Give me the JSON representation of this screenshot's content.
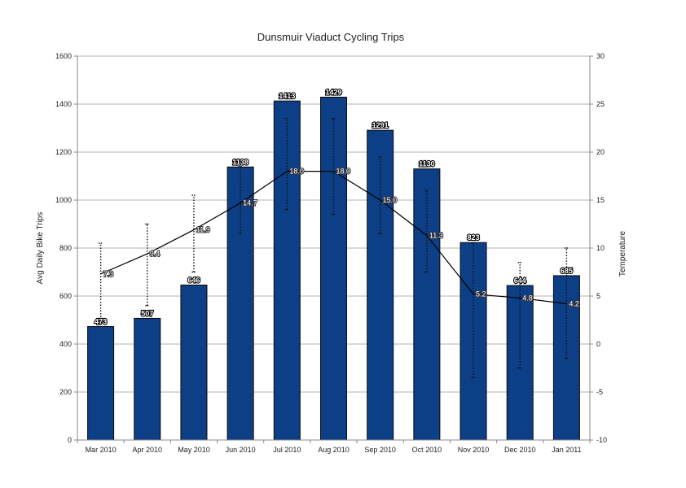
{
  "chart_data": {
    "type": "bar",
    "title": "Dunsmuir Viaduct Cycling Trips",
    "ylabel": "Avg Daily Bike Trips",
    "y2label": "Temperature",
    "categories": [
      "Mar 2010",
      "Apr 2010",
      "May 2010",
      "Jun 2010",
      "Jul 2010",
      "Aug 2010",
      "Sep 2010",
      "Oct 2010",
      "Nov 2010",
      "Dec 2010",
      "Jan 2011"
    ],
    "ylim": [
      0,
      1600
    ],
    "yticks": [
      0,
      200,
      400,
      600,
      800,
      1000,
      1200,
      1400,
      1600
    ],
    "y2lim": [
      -10,
      30
    ],
    "y2ticks": [
      -10,
      -5,
      0,
      5,
      10,
      15,
      20,
      25,
      30
    ],
    "grid": true,
    "series": [
      {
        "type": "bar",
        "axis": "left",
        "color": "#0d3f87",
        "values": [
          473,
          507,
          646,
          1138,
          1413,
          1429,
          1291,
          1130,
          823,
          644,
          685
        ]
      },
      {
        "type": "line",
        "axis": "right",
        "color": "#000000",
        "values": [
          7.3,
          9.4,
          11.9,
          14.7,
          18.0,
          18.0,
          15.0,
          11.3,
          5.2,
          4.8,
          4.2
        ],
        "value_labels": [
          "7.3",
          "9.4",
          "11.9",
          "14.7",
          "18.0",
          "18.0",
          "15.0",
          "11.3",
          "5.2",
          "4.8",
          "4.2"
        ],
        "error_low": [
          2.5,
          4.0,
          7.5,
          11.5,
          14.0,
          13.5,
          11.5,
          7.5,
          -3.5,
          -2.5,
          -1.5
        ],
        "error_high": [
          10.5,
          12.5,
          15.5,
          18.5,
          23.5,
          23.5,
          19.5,
          16.0,
          10.5,
          8.5,
          10.0
        ]
      }
    ]
  }
}
